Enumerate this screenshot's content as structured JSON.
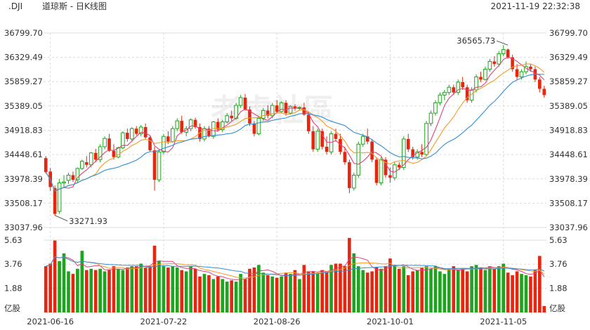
{
  "header": {
    "symbol": ".DJI",
    "title": "道琼斯 - 日K线图",
    "datetime": "2021-11-19 22:32:38"
  },
  "watermark": "老虎社區",
  "colors": {
    "up": "#1ea41e",
    "down": "#e8260f",
    "ma5": "#e0407a",
    "ma10": "#f39a24",
    "ma20": "#2f8ed6",
    "grid": "#dcdcdc",
    "axis_text": "#333333"
  },
  "chart_data": {
    "type": "candlestick",
    "price_ylim": [
      33037.96,
      36799.7
    ],
    "price_ticks": [
      "36799.70",
      "36329.49",
      "35859.27",
      "35389.05",
      "34918.83",
      "34448.61",
      "33978.39",
      "33508.17",
      "33037.96"
    ],
    "volume_ylim": [
      0,
      5.63
    ],
    "volume_ticks": [
      "5.63",
      "3.76",
      "1.88"
    ],
    "volume_unit": "亿股",
    "x_tick_labels": [
      {
        "label": "2021-06-16",
        "index": 1
      },
      {
        "label": "2021-07-22",
        "index": 26
      },
      {
        "label": "2021-08-26",
        "index": 51
      },
      {
        "label": "2021-10-01",
        "index": 76
      },
      {
        "label": "2021-11-05",
        "index": 101
      }
    ],
    "annotations": [
      {
        "label": "36565.73",
        "index": 102,
        "value": 36565.73,
        "kind": "high"
      },
      {
        "label": "33271.93",
        "index": 2,
        "value": 33271.93,
        "kind": "low"
      }
    ],
    "candles": [
      {
        "o": 34380,
        "h": 34420,
        "l": 34080,
        "c": 34110,
        "v": 3.6
      },
      {
        "o": 34120,
        "h": 34190,
        "l": 33740,
        "c": 33820,
        "v": 3.8
      },
      {
        "o": 33800,
        "h": 33850,
        "l": 33272,
        "c": 33300,
        "v": 5.6
      },
      {
        "o": 33350,
        "h": 33980,
        "l": 33300,
        "c": 33900,
        "v": 4.0
      },
      {
        "o": 33900,
        "h": 34050,
        "l": 33800,
        "c": 33920,
        "v": 4.6
      },
      {
        "o": 33950,
        "h": 34100,
        "l": 33880,
        "c": 34050,
        "v": 3.2
      },
      {
        "o": 34050,
        "h": 34120,
        "l": 33920,
        "c": 33960,
        "v": 3.0
      },
      {
        "o": 33960,
        "h": 34200,
        "l": 33900,
        "c": 34180,
        "v": 3.4
      },
      {
        "o": 34180,
        "h": 34350,
        "l": 34150,
        "c": 34320,
        "v": 4.8
      },
      {
        "o": 34300,
        "h": 34420,
        "l": 34200,
        "c": 34250,
        "v": 3.3
      },
      {
        "o": 34250,
        "h": 34500,
        "l": 34200,
        "c": 34480,
        "v": 3.4
      },
      {
        "o": 34480,
        "h": 34560,
        "l": 34300,
        "c": 34350,
        "v": 3.3
      },
      {
        "o": 34350,
        "h": 34650,
        "l": 34300,
        "c": 34600,
        "v": 3.4
      },
      {
        "o": 34600,
        "h": 34800,
        "l": 34550,
        "c": 34760,
        "v": 3.2
      },
      {
        "o": 34760,
        "h": 34850,
        "l": 34500,
        "c": 34520,
        "v": 3.3
      },
      {
        "o": 34520,
        "h": 34650,
        "l": 34350,
        "c": 34400,
        "v": 3.6
      },
      {
        "o": 34400,
        "h": 34600,
        "l": 34380,
        "c": 34580,
        "v": 3.4
      },
      {
        "o": 34580,
        "h": 34900,
        "l": 34550,
        "c": 34870,
        "v": 3.3
      },
      {
        "o": 34870,
        "h": 34950,
        "l": 34700,
        "c": 34750,
        "v": 3.5
      },
      {
        "o": 34750,
        "h": 34980,
        "l": 34700,
        "c": 34950,
        "v": 3.6
      },
      {
        "o": 34950,
        "h": 35000,
        "l": 34820,
        "c": 34850,
        "v": 3.6
      },
      {
        "o": 34850,
        "h": 35020,
        "l": 34800,
        "c": 34980,
        "v": 3.8
      },
      {
        "o": 34980,
        "h": 35050,
        "l": 34750,
        "c": 34780,
        "v": 3.5
      },
      {
        "o": 34780,
        "h": 34800,
        "l": 34500,
        "c": 34530,
        "v": 3.6
      },
      {
        "o": 34530,
        "h": 34600,
        "l": 33750,
        "c": 33960,
        "v": 5.2
      },
      {
        "o": 33960,
        "h": 34550,
        "l": 33920,
        "c": 34500,
        "v": 4.0
      },
      {
        "o": 34500,
        "h": 34850,
        "l": 34450,
        "c": 34800,
        "v": 3.6
      },
      {
        "o": 34800,
        "h": 34900,
        "l": 34650,
        "c": 34700,
        "v": 3.5
      },
      {
        "o": 34700,
        "h": 35000,
        "l": 34680,
        "c": 34950,
        "v": 3.6
      },
      {
        "o": 34950,
        "h": 35150,
        "l": 34900,
        "c": 35100,
        "v": 3.5
      },
      {
        "o": 35100,
        "h": 35200,
        "l": 34850,
        "c": 34880,
        "v": 3.3
      },
      {
        "o": 34880,
        "h": 35000,
        "l": 34800,
        "c": 34950,
        "v": 3.2
      },
      {
        "o": 34950,
        "h": 35150,
        "l": 34900,
        "c": 35120,
        "v": 3.6
      },
      {
        "o": 35120,
        "h": 35160,
        "l": 34950,
        "c": 34980,
        "v": 3.4
      },
      {
        "o": 34980,
        "h": 35050,
        "l": 34700,
        "c": 34750,
        "v": 2.8
      },
      {
        "o": 34750,
        "h": 35000,
        "l": 34700,
        "c": 34950,
        "v": 3.0
      },
      {
        "o": 34950,
        "h": 35000,
        "l": 34780,
        "c": 34800,
        "v": 2.9
      },
      {
        "o": 34800,
        "h": 35100,
        "l": 34750,
        "c": 35080,
        "v": 2.6
      },
      {
        "o": 35080,
        "h": 35150,
        "l": 34900,
        "c": 34930,
        "v": 2.8
      },
      {
        "o": 34930,
        "h": 35120,
        "l": 34880,
        "c": 35080,
        "v": 2.6
      },
      {
        "o": 35080,
        "h": 35250,
        "l": 35050,
        "c": 35200,
        "v": 2.4
      },
      {
        "o": 35200,
        "h": 35300,
        "l": 35100,
        "c": 35150,
        "v": 2.5
      },
      {
        "o": 35150,
        "h": 35450,
        "l": 35120,
        "c": 35400,
        "v": 2.4
      },
      {
        "o": 35400,
        "h": 35600,
        "l": 35350,
        "c": 35550,
        "v": 3.0
      },
      {
        "o": 35550,
        "h": 35620,
        "l": 35300,
        "c": 35320,
        "v": 2.6
      },
      {
        "o": 35320,
        "h": 35380,
        "l": 35000,
        "c": 35050,
        "v": 3.4
      },
      {
        "o": 35050,
        "h": 35100,
        "l": 34800,
        "c": 34850,
        "v": 3.5
      },
      {
        "o": 34850,
        "h": 35200,
        "l": 34820,
        "c": 35150,
        "v": 3.7
      },
      {
        "o": 35150,
        "h": 35350,
        "l": 35100,
        "c": 35300,
        "v": 3.1
      },
      {
        "o": 35300,
        "h": 35400,
        "l": 35150,
        "c": 35200,
        "v": 2.9
      },
      {
        "o": 35200,
        "h": 35450,
        "l": 35150,
        "c": 35400,
        "v": 2.8
      },
      {
        "o": 35400,
        "h": 35500,
        "l": 35250,
        "c": 35280,
        "v": 2.7
      },
      {
        "o": 35280,
        "h": 35480,
        "l": 35250,
        "c": 35450,
        "v": 2.8
      },
      {
        "o": 35450,
        "h": 35500,
        "l": 35200,
        "c": 35250,
        "v": 3.1
      },
      {
        "o": 35250,
        "h": 35400,
        "l": 35220,
        "c": 35380,
        "v": 3.0
      },
      {
        "o": 35380,
        "h": 35420,
        "l": 35300,
        "c": 35340,
        "v": 3.3
      },
      {
        "o": 35340,
        "h": 35380,
        "l": 35300,
        "c": 35360,
        "v": 2.6
      },
      {
        "o": 35360,
        "h": 35450,
        "l": 35200,
        "c": 35220,
        "v": 3.7
      },
      {
        "o": 35220,
        "h": 35280,
        "l": 34850,
        "c": 34900,
        "v": 3.2
      },
      {
        "o": 34900,
        "h": 35000,
        "l": 34500,
        "c": 34550,
        "v": 3.2
      },
      {
        "o": 34550,
        "h": 34950,
        "l": 34500,
        "c": 34900,
        "v": 3.0
      },
      {
        "o": 34900,
        "h": 34950,
        "l": 34550,
        "c": 34600,
        "v": 3.3
      },
      {
        "o": 34600,
        "h": 34800,
        "l": 34450,
        "c": 34500,
        "v": 3.2
      },
      {
        "o": 34500,
        "h": 34900,
        "l": 34450,
        "c": 34850,
        "v": 3.7
      },
      {
        "o": 34850,
        "h": 34950,
        "l": 34700,
        "c": 34750,
        "v": 3.8
      },
      {
        "o": 34750,
        "h": 34850,
        "l": 34450,
        "c": 34500,
        "v": 3.8
      },
      {
        "o": 34500,
        "h": 34600,
        "l": 34250,
        "c": 34300,
        "v": 3.6
      },
      {
        "o": 34300,
        "h": 34350,
        "l": 33700,
        "c": 33800,
        "v": 5.8
      },
      {
        "o": 33800,
        "h": 34100,
        "l": 33750,
        "c": 34050,
        "v": 4.6
      },
      {
        "o": 34050,
        "h": 34700,
        "l": 34000,
        "c": 34650,
        "v": 3.6
      },
      {
        "o": 34650,
        "h": 34850,
        "l": 34600,
        "c": 34800,
        "v": 3.3
      },
      {
        "o": 34800,
        "h": 34950,
        "l": 34650,
        "c": 34700,
        "v": 3.1
      },
      {
        "o": 34700,
        "h": 34750,
        "l": 34300,
        "c": 34350,
        "v": 3.2
      },
      {
        "o": 34350,
        "h": 34400,
        "l": 33850,
        "c": 33900,
        "v": 3.5
      },
      {
        "o": 33900,
        "h": 34400,
        "l": 33850,
        "c": 34350,
        "v": 3.4
      },
      {
        "o": 34350,
        "h": 34400,
        "l": 34000,
        "c": 34050,
        "v": 3.6
      },
      {
        "o": 34050,
        "h": 34200,
        "l": 33900,
        "c": 34000,
        "v": 4.2
      },
      {
        "o": 34000,
        "h": 34300,
        "l": 33950,
        "c": 34250,
        "v": 3.7
      },
      {
        "o": 34250,
        "h": 34300,
        "l": 34150,
        "c": 34200,
        "v": 3.4
      },
      {
        "o": 34200,
        "h": 34800,
        "l": 34150,
        "c": 34750,
        "v": 3.6
      },
      {
        "o": 34750,
        "h": 34850,
        "l": 34500,
        "c": 34550,
        "v": 2.9
      },
      {
        "o": 34550,
        "h": 34600,
        "l": 34350,
        "c": 34400,
        "v": 3.2
      },
      {
        "o": 34400,
        "h": 34550,
        "l": 34350,
        "c": 34500,
        "v": 3.3
      },
      {
        "o": 34500,
        "h": 34650,
        "l": 34400,
        "c": 34450,
        "v": 3.5
      },
      {
        "o": 34450,
        "h": 35100,
        "l": 34420,
        "c": 35050,
        "v": 3.6
      },
      {
        "o": 35050,
        "h": 35300,
        "l": 35000,
        "c": 35250,
        "v": 3.4
      },
      {
        "o": 35250,
        "h": 35500,
        "l": 35200,
        "c": 35450,
        "v": 3.6
      },
      {
        "o": 35450,
        "h": 35650,
        "l": 35400,
        "c": 35600,
        "v": 3.2
      },
      {
        "o": 35600,
        "h": 35700,
        "l": 35500,
        "c": 35650,
        "v": 3.0
      },
      {
        "o": 35650,
        "h": 35800,
        "l": 35600,
        "c": 35750,
        "v": 3.4
      },
      {
        "o": 35750,
        "h": 35800,
        "l": 35600,
        "c": 35650,
        "v": 3.6
      },
      {
        "o": 35650,
        "h": 35900,
        "l": 35600,
        "c": 35850,
        "v": 3.3
      },
      {
        "o": 35850,
        "h": 35950,
        "l": 35700,
        "c": 35750,
        "v": 3.4
      },
      {
        "o": 35750,
        "h": 35800,
        "l": 35450,
        "c": 35500,
        "v": 3.2
      },
      {
        "o": 35500,
        "h": 35750,
        "l": 35450,
        "c": 35700,
        "v": 3.6
      },
      {
        "o": 35700,
        "h": 36000,
        "l": 35650,
        "c": 35950,
        "v": 3.7
      },
      {
        "o": 35950,
        "h": 36050,
        "l": 35850,
        "c": 35900,
        "v": 3.5
      },
      {
        "o": 35900,
        "h": 36150,
        "l": 35880,
        "c": 36100,
        "v": 3.3
      },
      {
        "o": 36100,
        "h": 36300,
        "l": 36050,
        "c": 36250,
        "v": 3.6
      },
      {
        "o": 36250,
        "h": 36350,
        "l": 36150,
        "c": 36200,
        "v": 3.4
      },
      {
        "o": 36200,
        "h": 36450,
        "l": 36150,
        "c": 36400,
        "v": 3.6
      },
      {
        "o": 36400,
        "h": 36566,
        "l": 36350,
        "c": 36480,
        "v": 3.8
      },
      {
        "o": 36480,
        "h": 36500,
        "l": 36300,
        "c": 36330,
        "v": 3.1
      },
      {
        "o": 36330,
        "h": 36380,
        "l": 36050,
        "c": 36100,
        "v": 2.9
      },
      {
        "o": 36100,
        "h": 36200,
        "l": 35900,
        "c": 35950,
        "v": 3.2
      },
      {
        "o": 35950,
        "h": 36100,
        "l": 35900,
        "c": 36050,
        "v": 3.0
      },
      {
        "o": 36050,
        "h": 36250,
        "l": 36000,
        "c": 36150,
        "v": 2.9
      },
      {
        "o": 36150,
        "h": 36200,
        "l": 36050,
        "c": 36100,
        "v": 2.8
      },
      {
        "o": 36100,
        "h": 36150,
        "l": 35850,
        "c": 35900,
        "v": 3.3
      },
      {
        "o": 35900,
        "h": 35950,
        "l": 35650,
        "c": 35720,
        "v": 4.4
      },
      {
        "o": 35720,
        "h": 35780,
        "l": 35550,
        "c": 35600,
        "v": 0.5
      }
    ]
  }
}
